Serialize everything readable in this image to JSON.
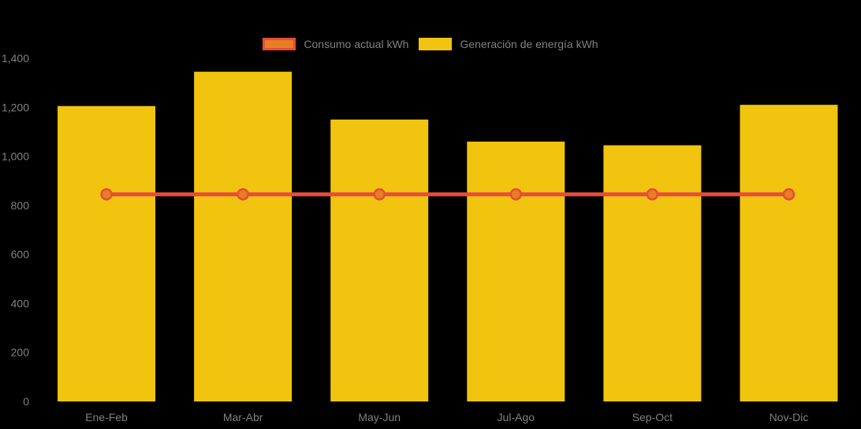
{
  "app": {
    "background_color": "#000000",
    "text_color": "#808080"
  },
  "legend": {
    "position": "top-center",
    "text_color": "#808080",
    "items": [
      {
        "label": "Consumo actual kWh",
        "kind": "line",
        "swatch_fill": "#E67E22",
        "swatch_border": "#E74C3C"
      },
      {
        "label": "Generación de energía kWh",
        "kind": "bar",
        "swatch_fill": "#F1C40F",
        "swatch_border": "#F1C40F"
      }
    ]
  },
  "chart_data": {
    "type": "bar",
    "title": "",
    "xlabel": "",
    "ylabel": "",
    "categories": [
      "Ene-Feb",
      "Mar-Abr",
      "May-Jun",
      "Jul-Ago",
      "Sep-Oct",
      "Nov-Dic"
    ],
    "series": [
      {
        "name": "Generación de energía kWh",
        "type": "bar",
        "color": "#F1C40F",
        "values": [
          1205,
          1345,
          1150,
          1060,
          1045,
          1210
        ]
      },
      {
        "name": "Consumo actual kWh",
        "type": "line",
        "color": "#E74C3C",
        "marker_fill": "#E67E22",
        "values": [
          845,
          845,
          845,
          845,
          845,
          845
        ]
      }
    ],
    "ylim": [
      0,
      1400
    ],
    "yticks": [
      0,
      200,
      400,
      600,
      800,
      1000,
      1200,
      1400
    ],
    "ytick_labels": [
      "0",
      "200",
      "400",
      "600",
      "800",
      "1,000",
      "1,200",
      "1,400"
    ],
    "grid": false,
    "legend_position": "top-center",
    "axis_text_color": "#808080"
  }
}
